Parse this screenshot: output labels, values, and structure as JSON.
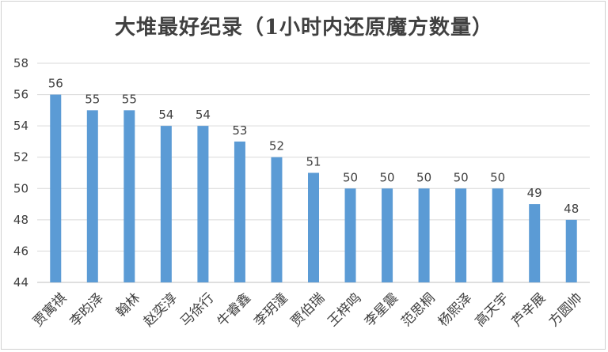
{
  "chart_data": {
    "type": "bar",
    "title": "大堆最好纪录（1小时内还原魔方数量）",
    "xlabel": "",
    "ylabel": "",
    "categories": [
      "贾寓祺",
      "李昀泽",
      "翰林",
      "赵奕淳",
      "马徐行",
      "牛睿鑫",
      "李玥潼",
      "贾伯瑞",
      "王梓鸣",
      "李星震",
      "范思桐",
      "杨熙泽",
      "高天宇",
      "芦辛展",
      "方圆帅"
    ],
    "values": [
      56,
      55,
      55,
      54,
      54,
      53,
      52,
      51,
      50,
      50,
      50,
      50,
      50,
      49,
      48
    ],
    "ylim": [
      44,
      58
    ],
    "yticks": [
      44,
      46,
      48,
      50,
      52,
      54,
      56,
      58
    ],
    "grid": true,
    "bar_color": "#5b9bd5",
    "grid_color": "#d9d9d9",
    "data_labels": true,
    "legend": "none"
  }
}
